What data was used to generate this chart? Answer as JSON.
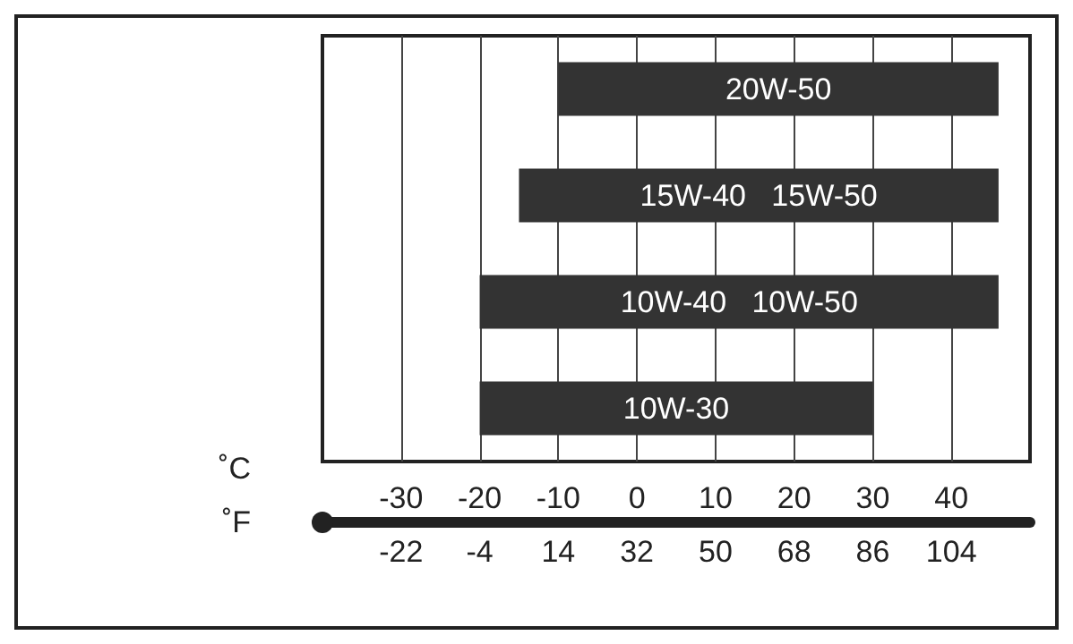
{
  "chart_data": {
    "type": "bar",
    "orientation": "horizontal",
    "stacked": true,
    "categories": [
      "20W-50",
      "15W-40   15W-50",
      "10W-40   10W-50",
      "10W-30"
    ],
    "base": [
      -10,
      -15,
      -20,
      -20
    ],
    "values": [
      56,
      61,
      66,
      50
    ],
    "color": "#333333",
    "xlabel": "˚C",
    "x2label": "˚F",
    "xlim": [
      -40,
      50
    ],
    "xticks": [
      -30,
      -20,
      -10,
      0,
      10,
      20,
      30,
      40
    ],
    "x2lim": [
      -40,
      122
    ],
    "x2ticks": [
      -22,
      -4,
      14,
      32,
      50,
      68,
      86,
      104
    ],
    "grid": "x",
    "tick_labels": "x"
  }
}
